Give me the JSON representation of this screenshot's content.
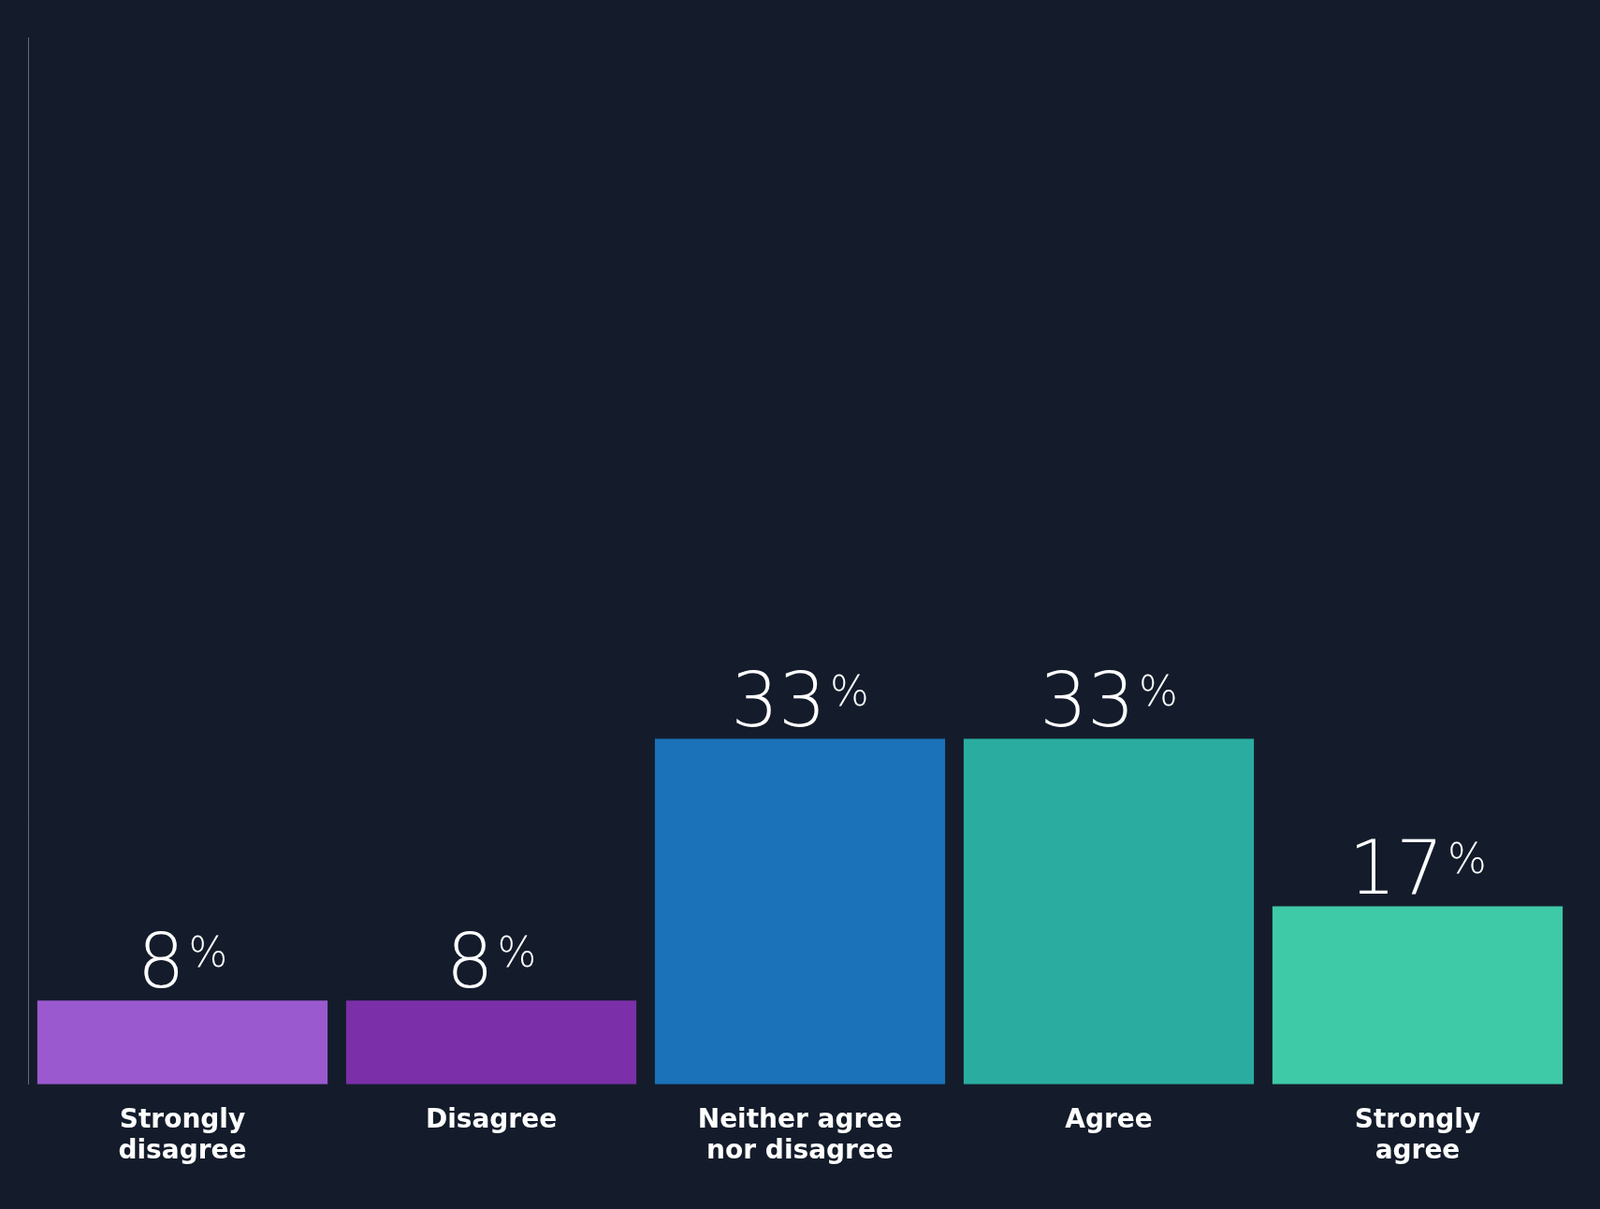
{
  "chart_data": {
    "type": "bar",
    "categories": [
      "Strongly\ndisagree",
      "Disagree",
      "Neither agree\nnor disagree",
      "Agree",
      "Strongly\nagree"
    ],
    "values": [
      8,
      8,
      33,
      33,
      17
    ],
    "value_labels": [
      "8%",
      "8%",
      "33%",
      "33%",
      "17%"
    ],
    "colors": [
      "#9B59D0",
      "#7B2FA8",
      "#1B72B8",
      "#2AADA0",
      "#3EC9A7"
    ],
    "ylim": [
      0,
      100
    ],
    "data_labels": true,
    "tick_labels": "x",
    "grid": false
  }
}
